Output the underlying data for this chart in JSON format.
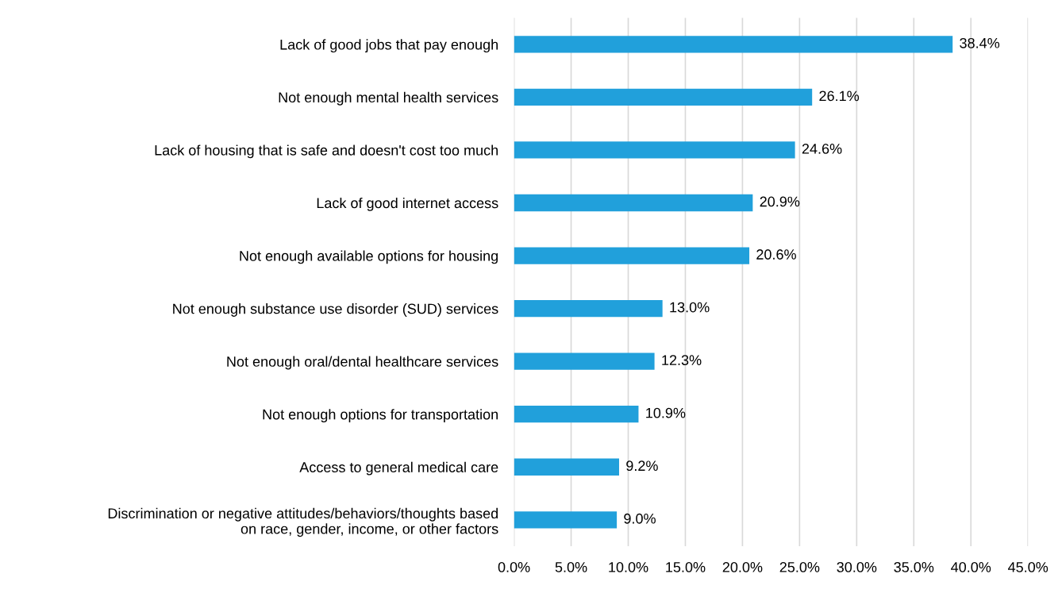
{
  "chart_data": {
    "type": "bar",
    "orientation": "horizontal",
    "categories": [
      "Lack of good jobs that pay enough",
      "Not enough mental health services",
      "Lack of housing that is safe and doesn't cost too much",
      "Lack of good internet access",
      "Not enough available options for housing",
      "Not enough substance use disorder (SUD) services",
      "Not enough oral/dental healthcare services",
      "Not enough options for transportation",
      "Access to general medical care",
      "Discrimination or negative attitudes/behaviors/thoughts based\non race, gender, income, or other factors"
    ],
    "values": [
      38.4,
      26.1,
      24.6,
      20.9,
      20.6,
      13.0,
      12.3,
      10.9,
      9.2,
      9.0
    ],
    "value_labels": [
      "38.4%",
      "26.1%",
      "24.6%",
      "20.9%",
      "20.6%",
      "13.0%",
      "12.3%",
      "10.9%",
      "9.2%",
      "9.0%"
    ],
    "color": "#21a0db",
    "xlim": [
      0,
      45
    ],
    "xticks": [
      {
        "value": 0,
        "label": "0.0%"
      },
      {
        "value": 5,
        "label": "5.0%"
      },
      {
        "value": 10,
        "label": "10.0%"
      },
      {
        "value": 15,
        "label": "15.0%"
      },
      {
        "value": 20,
        "label": "20.0%"
      },
      {
        "value": 25,
        "label": "25.0%"
      },
      {
        "value": 30,
        "label": "30.0%"
      },
      {
        "value": 35,
        "label": "35.0%"
      },
      {
        "value": 40,
        "label": "40.0%"
      },
      {
        "value": 45,
        "label": "45.0%"
      }
    ],
    "grid": "x"
  }
}
